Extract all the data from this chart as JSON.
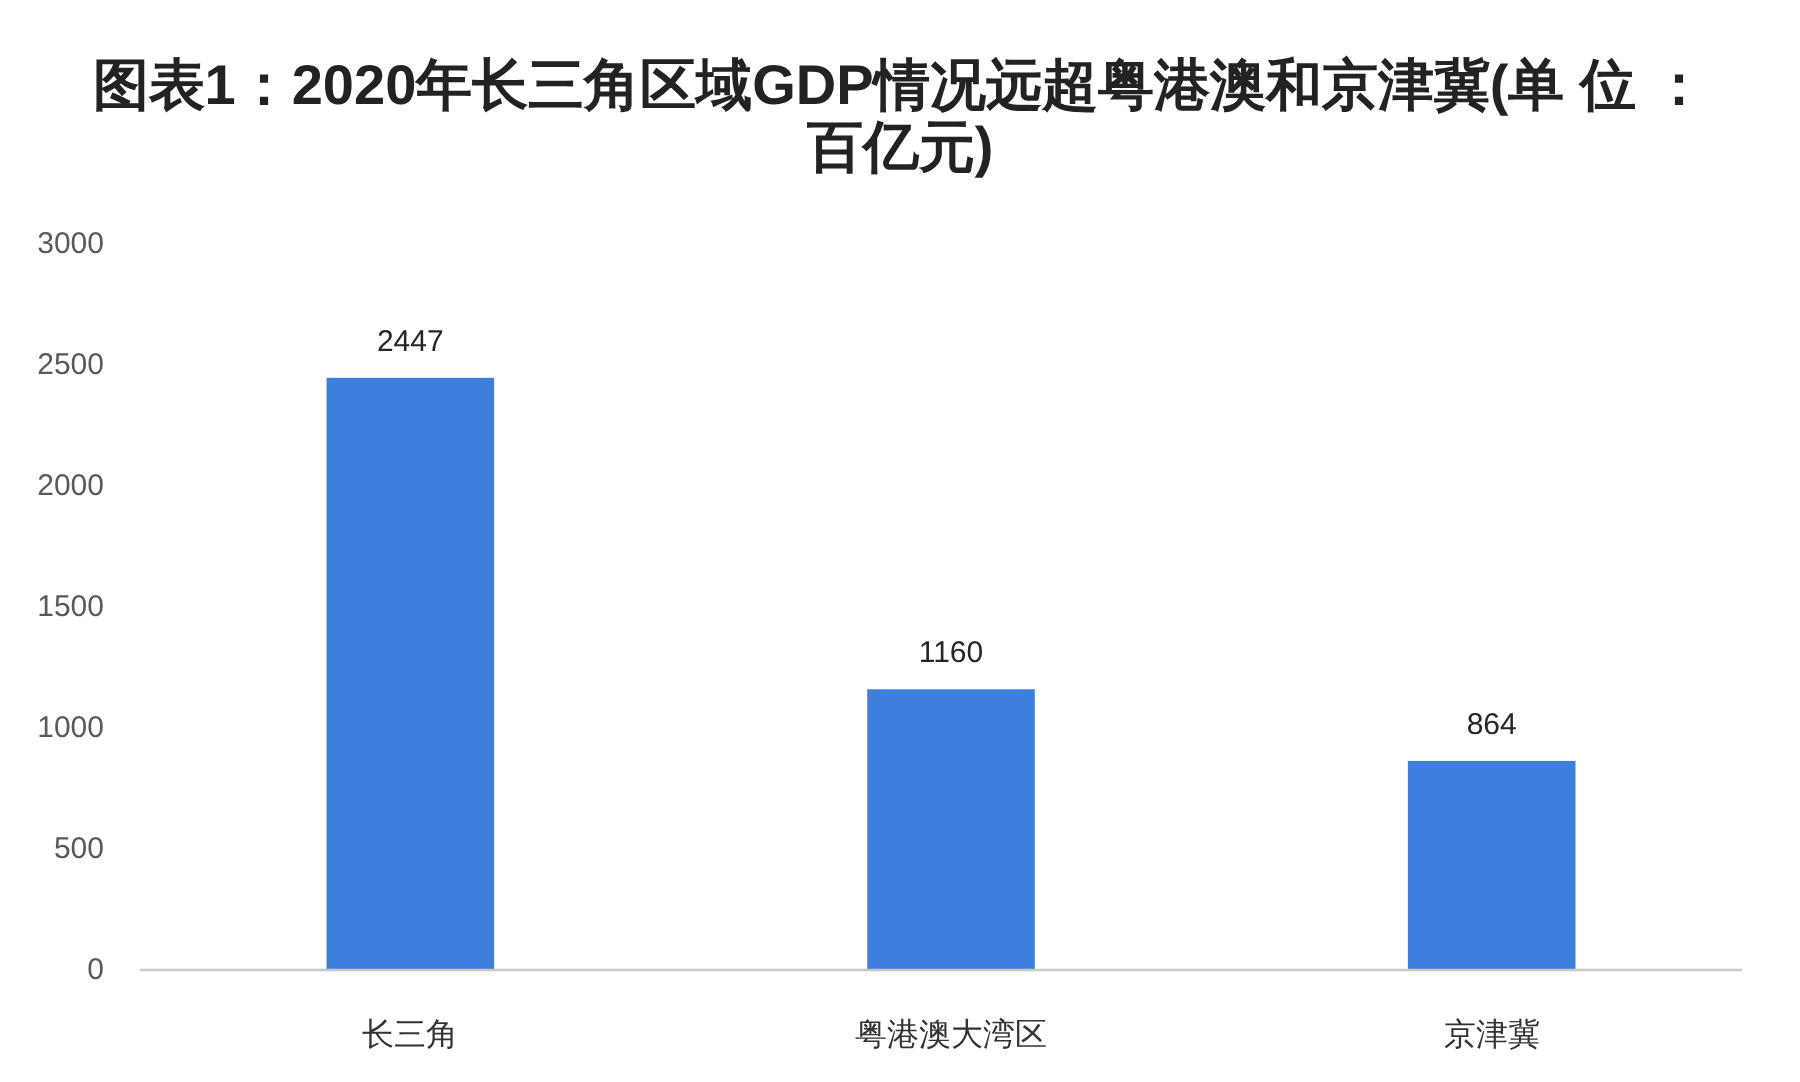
{
  "chart_data": {
    "type": "bar",
    "title": "图表1：2020年长三角区域GDP情况远超粤港澳和京津冀(单 位 ：百亿元)",
    "categories": [
      "长三角",
      "粤港澳大湾区",
      "京津冀"
    ],
    "values": [
      2447,
      1160,
      864
    ],
    "color": "#3d7fdc",
    "ylim": [
      0,
      3000
    ],
    "yticks": [
      0,
      500,
      1000,
      1500,
      2000,
      2500,
      3000
    ],
    "data_labels": true
  }
}
